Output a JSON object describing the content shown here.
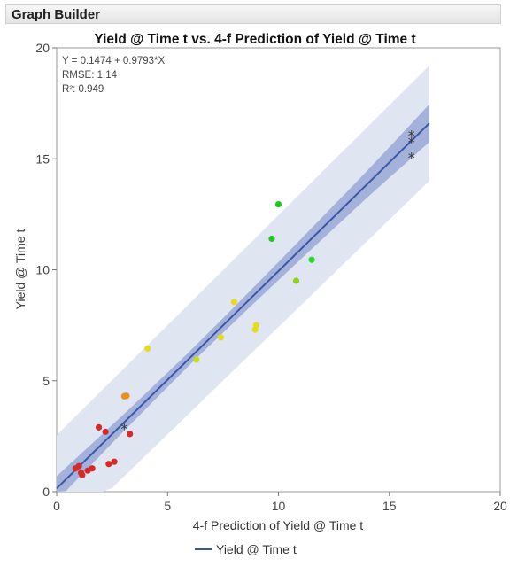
{
  "panel": {
    "title": "Graph Builder"
  },
  "chart_data": {
    "type": "scatter",
    "title": "Yield @ Time t vs. 4-f Prediction of Yield @ Time t",
    "xlabel": "4-f Prediction of Yield @ Time t",
    "ylabel": "Yield @ Time t",
    "xlim": [
      0,
      20
    ],
    "ylim": [
      0,
      20
    ],
    "xticks": [
      0,
      5,
      10,
      15,
      20
    ],
    "yticks": [
      0,
      5,
      10,
      15,
      20
    ],
    "grid": false,
    "fit": {
      "intercept": 0.1474,
      "slope": 0.9793,
      "x_range": [
        0,
        16.8
      ],
      "line_color": "#3a57a7",
      "annotation": [
        "Y = 0.1474 + 0.9793*X",
        "RMSE: 1.14",
        "R²: 0.949"
      ],
      "prediction_band": {
        "color": "#dfe5f1",
        "halfwidth_start": 2.4,
        "halfwidth_end": 2.6
      },
      "confidence_band": {
        "color": "#9aa8d6",
        "halfwidths": [
          [
            0,
            0.55
          ],
          [
            3,
            0.38
          ],
          [
            6,
            0.3
          ],
          [
            8.5,
            0.35
          ],
          [
            11,
            0.45
          ],
          [
            14,
            0.6
          ],
          [
            16.8,
            0.85
          ]
        ]
      }
    },
    "points": [
      {
        "x": 0.85,
        "y": 1.05,
        "color": "#d42a2a"
      },
      {
        "x": 1.0,
        "y": 1.15,
        "color": "#d42a2a"
      },
      {
        "x": 1.1,
        "y": 0.85,
        "color": "#d42a2a"
      },
      {
        "x": 1.15,
        "y": 0.75,
        "color": "#d42a2a"
      },
      {
        "x": 1.4,
        "y": 0.95,
        "color": "#d42a2a"
      },
      {
        "x": 1.6,
        "y": 1.05,
        "color": "#d42a2a"
      },
      {
        "x": 1.9,
        "y": 2.9,
        "color": "#d42a2a"
      },
      {
        "x": 2.2,
        "y": 2.7,
        "color": "#d42a2a"
      },
      {
        "x": 2.35,
        "y": 1.25,
        "color": "#d42a2a"
      },
      {
        "x": 2.6,
        "y": 1.35,
        "color": "#d42a2a"
      },
      {
        "x": 3.3,
        "y": 2.6,
        "color": "#d42a2a"
      },
      {
        "x": 3.05,
        "y": 4.3,
        "color": "#e8901a"
      },
      {
        "x": 3.15,
        "y": 4.32,
        "color": "#e8901a"
      },
      {
        "x": 4.1,
        "y": 6.45,
        "color": "#e6dc1a"
      },
      {
        "x": 6.3,
        "y": 5.95,
        "color": "#c8dc1a"
      },
      {
        "x": 7.4,
        "y": 6.95,
        "color": "#e6dc1a"
      },
      {
        "x": 8.0,
        "y": 8.55,
        "color": "#e6dc1a"
      },
      {
        "x": 8.95,
        "y": 7.3,
        "color": "#e6dc1a"
      },
      {
        "x": 9.0,
        "y": 7.5,
        "color": "#e6dc1a"
      },
      {
        "x": 9.7,
        "y": 11.4,
        "color": "#1fc81f"
      },
      {
        "x": 10.0,
        "y": 12.95,
        "color": "#1fc81f"
      },
      {
        "x": 10.8,
        "y": 9.5,
        "color": "#88d41a"
      },
      {
        "x": 11.5,
        "y": 10.45,
        "color": "#2fd42f"
      }
    ],
    "star_points": [
      {
        "x": 3.05,
        "y": 2.9
      },
      {
        "x": 16.0,
        "y": 16.1
      },
      {
        "x": 16.0,
        "y": 15.8
      },
      {
        "x": 16.0,
        "y": 15.1
      }
    ],
    "legend": {
      "placement": "bottom",
      "items": [
        {
          "label": "Yield @ Time t",
          "color": "#3a57a7"
        }
      ]
    }
  }
}
